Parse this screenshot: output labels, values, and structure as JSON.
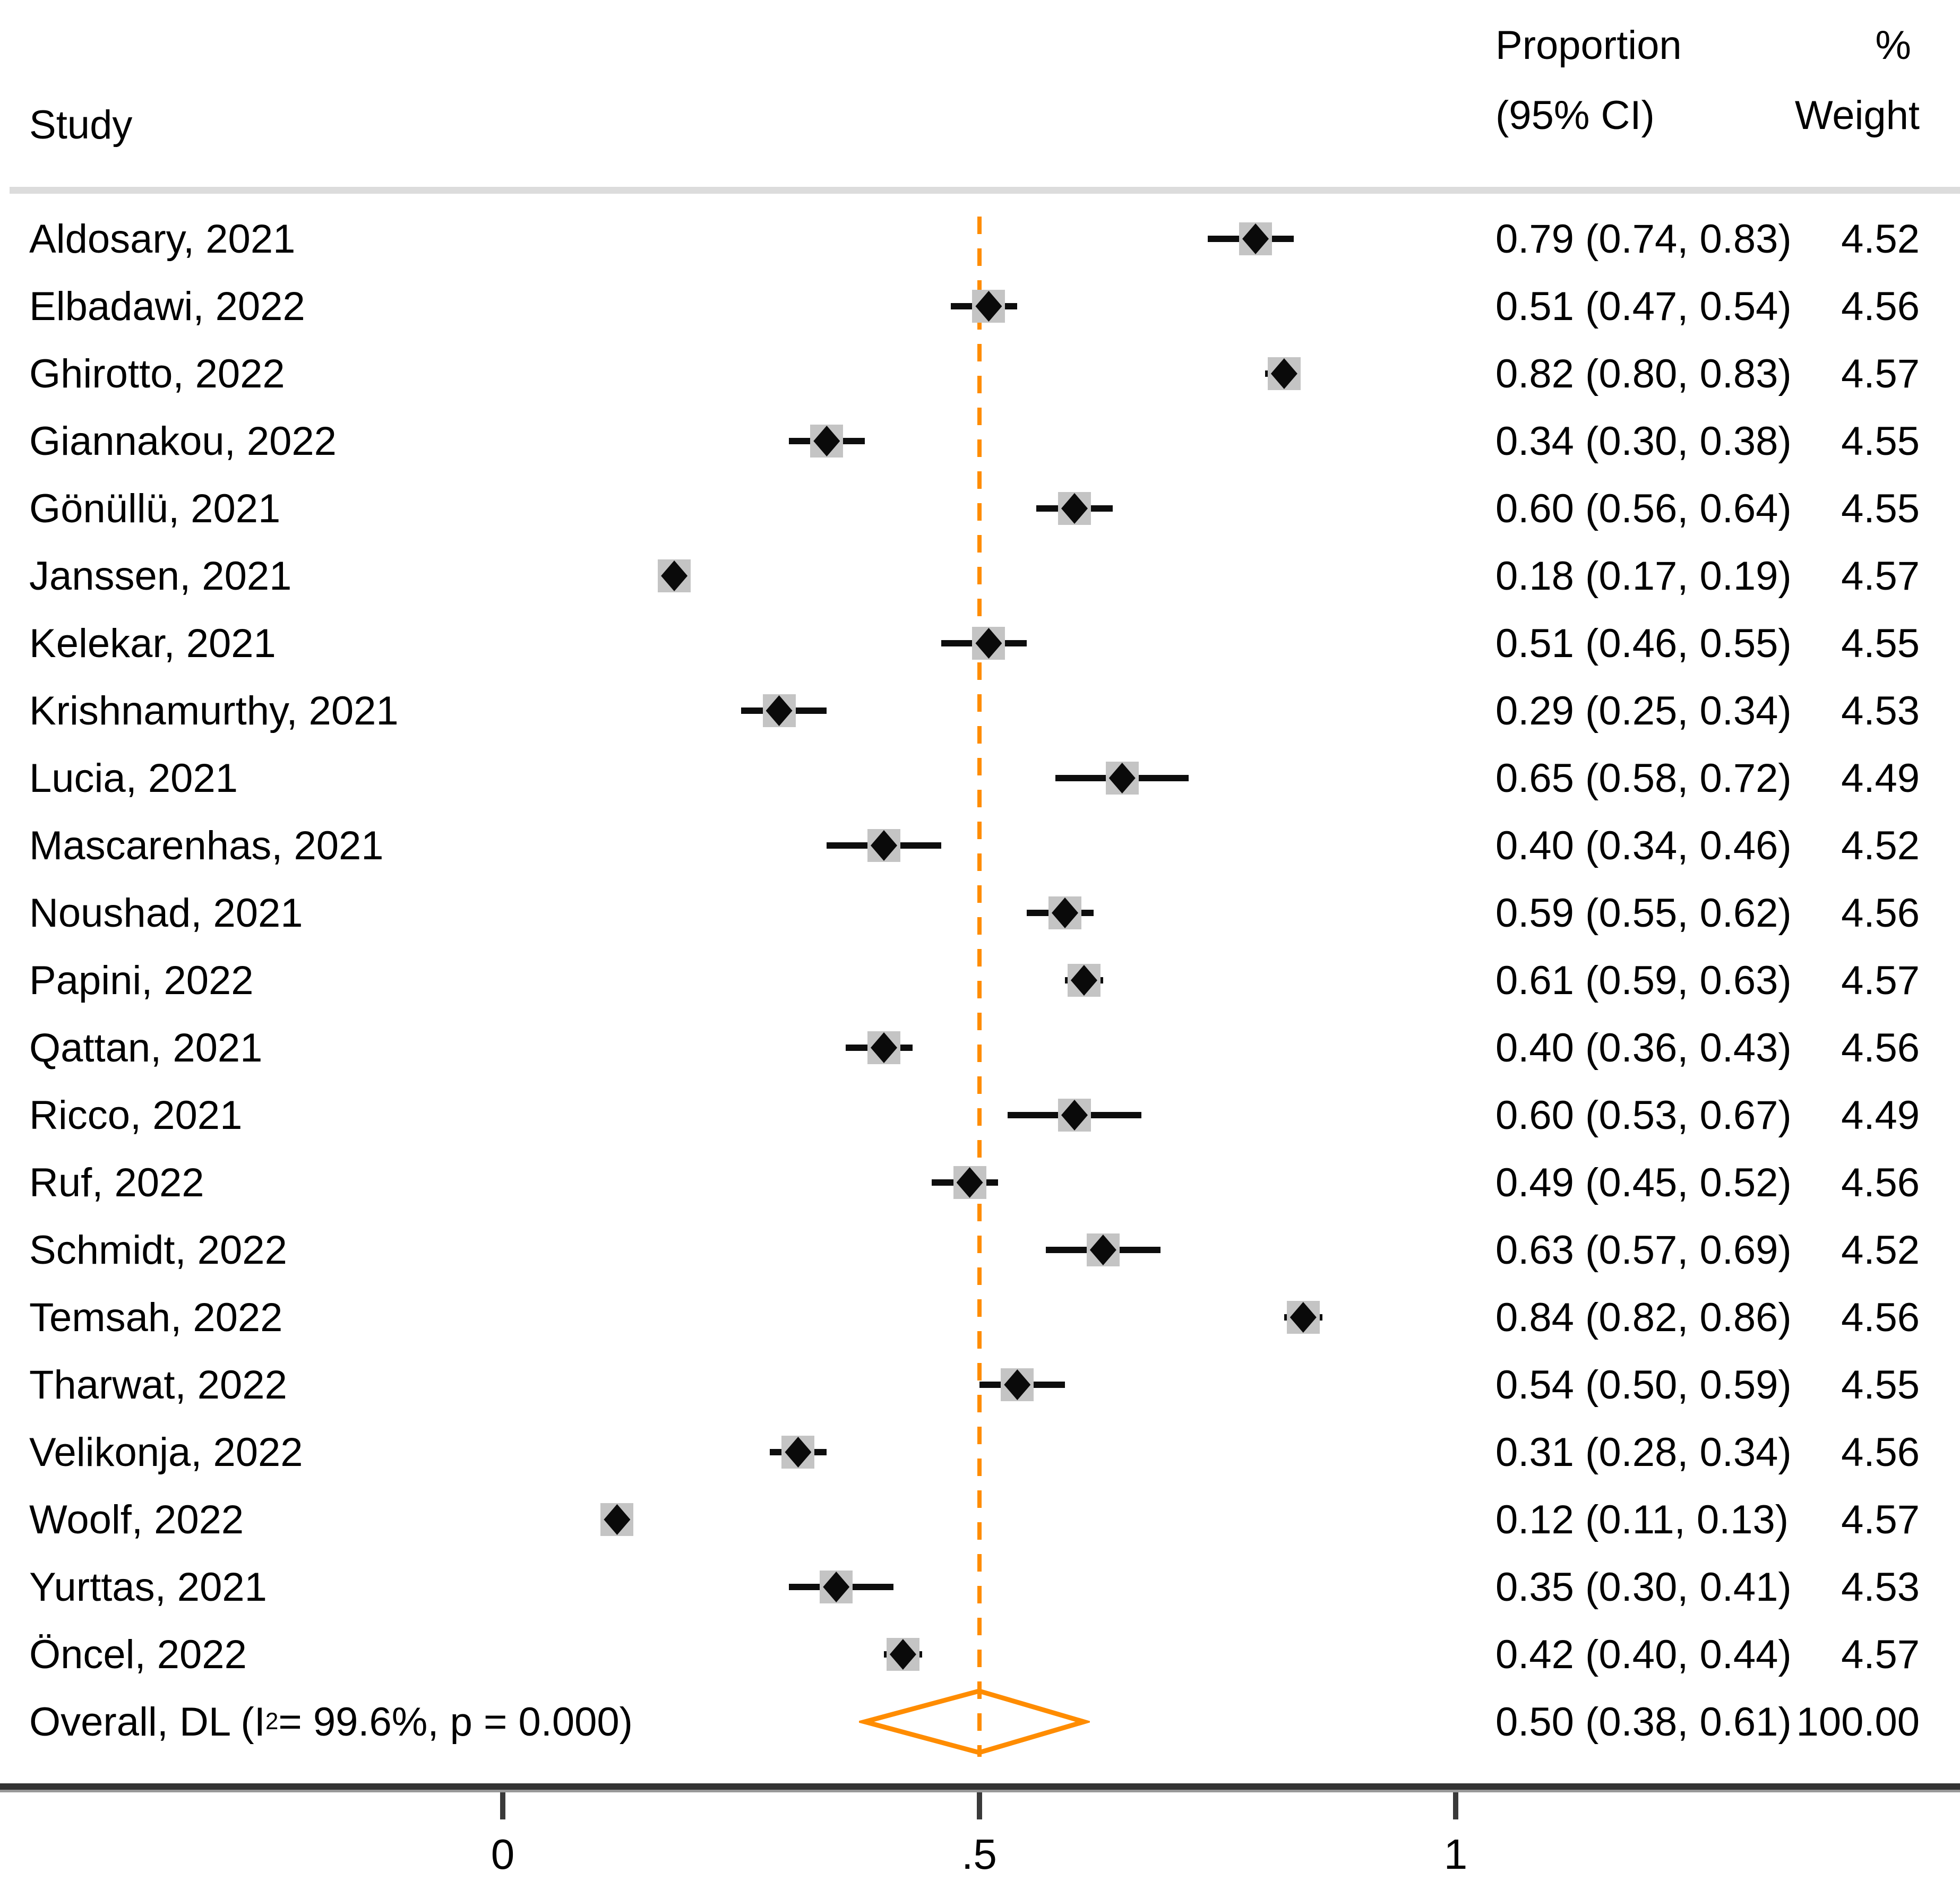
{
  "header": {
    "study": "Study",
    "proportion_line1": "Proportion",
    "proportion_line2": "(95% CI)",
    "weight_line1": "%",
    "weight_line2": "Weight"
  },
  "chart_data": {
    "type": "forest",
    "title": "",
    "xlabel": "",
    "x_axis": {
      "min": 0,
      "max": 1,
      "ticks": [
        0,
        0.5,
        1
      ],
      "tick_labels": [
        "0",
        ".5",
        "1"
      ],
      "ref_line": 0.5
    },
    "studies": [
      {
        "label": "Aldosary, 2021",
        "proportion": 0.79,
        "ci_lower": 0.74,
        "ci_upper": 0.83,
        "ci_text": "0.79 (0.74, 0.83)",
        "weight": "4.52",
        "weight_value": 4.52
      },
      {
        "label": "Elbadawi, 2022",
        "proportion": 0.51,
        "ci_lower": 0.47,
        "ci_upper": 0.54,
        "ci_text": "0.51 (0.47, 0.54)",
        "weight": "4.56",
        "weight_value": 4.56
      },
      {
        "label": "Ghirotto, 2022",
        "proportion": 0.82,
        "ci_lower": 0.8,
        "ci_upper": 0.83,
        "ci_text": "0.82 (0.80, 0.83)",
        "weight": "4.57",
        "weight_value": 4.57
      },
      {
        "label": "Giannakou, 2022",
        "proportion": 0.34,
        "ci_lower": 0.3,
        "ci_upper": 0.38,
        "ci_text": "0.34 (0.30, 0.38)",
        "weight": "4.55",
        "weight_value": 4.55
      },
      {
        "label": "Gönüllü, 2021",
        "proportion": 0.6,
        "ci_lower": 0.56,
        "ci_upper": 0.64,
        "ci_text": "0.60 (0.56, 0.64)",
        "weight": "4.55",
        "weight_value": 4.55
      },
      {
        "label": "Janssen, 2021",
        "proportion": 0.18,
        "ci_lower": 0.17,
        "ci_upper": 0.19,
        "ci_text": "0.18 (0.17, 0.19)",
        "weight": "4.57",
        "weight_value": 4.57
      },
      {
        "label": "Kelekar, 2021",
        "proportion": 0.51,
        "ci_lower": 0.46,
        "ci_upper": 0.55,
        "ci_text": "0.51 (0.46, 0.55)",
        "weight": "4.55",
        "weight_value": 4.55
      },
      {
        "label": "Krishnamurthy, 2021",
        "proportion": 0.29,
        "ci_lower": 0.25,
        "ci_upper": 0.34,
        "ci_text": "0.29 (0.25, 0.34)",
        "weight": "4.53",
        "weight_value": 4.53
      },
      {
        "label": "Lucia, 2021",
        "proportion": 0.65,
        "ci_lower": 0.58,
        "ci_upper": 0.72,
        "ci_text": "0.65 (0.58, 0.72)",
        "weight": "4.49",
        "weight_value": 4.49
      },
      {
        "label": "Mascarenhas, 2021",
        "proportion": 0.4,
        "ci_lower": 0.34,
        "ci_upper": 0.46,
        "ci_text": "0.40 (0.34, 0.46)",
        "weight": "4.52",
        "weight_value": 4.52
      },
      {
        "label": "Noushad, 2021",
        "proportion": 0.59,
        "ci_lower": 0.55,
        "ci_upper": 0.62,
        "ci_text": "0.59 (0.55, 0.62)",
        "weight": "4.56",
        "weight_value": 4.56
      },
      {
        "label": "Papini, 2022",
        "proportion": 0.61,
        "ci_lower": 0.59,
        "ci_upper": 0.63,
        "ci_text": "0.61 (0.59, 0.63)",
        "weight": "4.57",
        "weight_value": 4.57
      },
      {
        "label": "Qattan, 2021",
        "proportion": 0.4,
        "ci_lower": 0.36,
        "ci_upper": 0.43,
        "ci_text": "0.40 (0.36, 0.43)",
        "weight": "4.56",
        "weight_value": 4.56
      },
      {
        "label": "Ricco, 2021",
        "proportion": 0.6,
        "ci_lower": 0.53,
        "ci_upper": 0.67,
        "ci_text": "0.60 (0.53, 0.67)",
        "weight": "4.49",
        "weight_value": 4.49
      },
      {
        "label": "Ruf, 2022",
        "proportion": 0.49,
        "ci_lower": 0.45,
        "ci_upper": 0.52,
        "ci_text": "0.49 (0.45, 0.52)",
        "weight": "4.56",
        "weight_value": 4.56
      },
      {
        "label": "Schmidt, 2022",
        "proportion": 0.63,
        "ci_lower": 0.57,
        "ci_upper": 0.69,
        "ci_text": "0.63 (0.57, 0.69)",
        "weight": "4.52",
        "weight_value": 4.52
      },
      {
        "label": "Temsah, 2022",
        "proportion": 0.84,
        "ci_lower": 0.82,
        "ci_upper": 0.86,
        "ci_text": "0.84 (0.82, 0.86)",
        "weight": "4.56",
        "weight_value": 4.56
      },
      {
        "label": "Tharwat, 2022",
        "proportion": 0.54,
        "ci_lower": 0.5,
        "ci_upper": 0.59,
        "ci_text": "0.54 (0.50, 0.59)",
        "weight": "4.55",
        "weight_value": 4.55
      },
      {
        "label": "Velikonja, 2022",
        "proportion": 0.31,
        "ci_lower": 0.28,
        "ci_upper": 0.34,
        "ci_text": "0.31 (0.28, 0.34)",
        "weight": "4.56",
        "weight_value": 4.56
      },
      {
        "label": "Woolf, 2022",
        "proportion": 0.12,
        "ci_lower": 0.11,
        "ci_upper": 0.13,
        "ci_text": "0.12 (0.11, 0.13)",
        "weight": "4.57",
        "weight_value": 4.57
      },
      {
        "label": "Yurttas, 2021",
        "proportion": 0.35,
        "ci_lower": 0.3,
        "ci_upper": 0.41,
        "ci_text": "0.35 (0.30, 0.41)",
        "weight": "4.53",
        "weight_value": 4.53
      },
      {
        "label": "Öncel, 2022",
        "proportion": 0.42,
        "ci_lower": 0.4,
        "ci_upper": 0.44,
        "ci_text": "0.42 (0.40, 0.44)",
        "weight": "4.57",
        "weight_value": 4.57
      }
    ],
    "overall": {
      "label_pre": "Overall, DL (I",
      "label_sup": "2",
      "label_post": " = 99.6%, p = 0.000)",
      "proportion": 0.5,
      "ci_lower": 0.38,
      "ci_upper": 0.61,
      "ci_text": "0.50 (0.38, 0.61)",
      "weight": "100.00",
      "weight_value": 100.0
    },
    "legend": null,
    "grid": false
  },
  "colors": {
    "accent_orange": "#ff8c00",
    "weight_box_gray": "#c4c4c4",
    "marker_black": "#0a0a0a",
    "rule_light_gray": "#dcdcdc",
    "axis_dark_gray": "#333333",
    "axis_shadow_gray": "#999999"
  }
}
